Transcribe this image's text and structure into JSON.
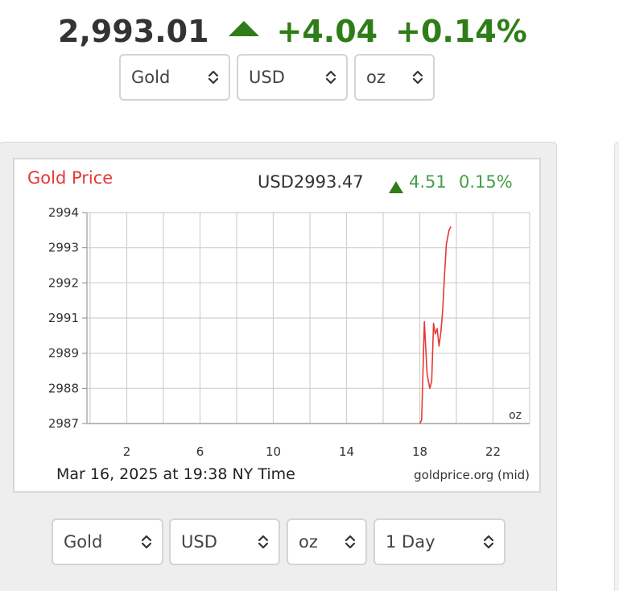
{
  "header": {
    "price": "2,993.01",
    "change": "+4.04",
    "change_pct": "+0.14%",
    "up_color": "#2e7d18"
  },
  "top_selectors": {
    "metal": "Gold",
    "currency": "USD",
    "unit": "oz"
  },
  "chart_header": {
    "title": "Gold Price",
    "price": "USD2993.47",
    "change": "4.51",
    "change_pct": "0.15%"
  },
  "chart_footer": {
    "timestamp": "Mar 16, 2025 at 19:38 NY Time",
    "source": "goldprice.org (mid)"
  },
  "chart_data": {
    "type": "line",
    "unit_label": "oz",
    "yticks": [
      "2994",
      "2993",
      "2992",
      "2991",
      "2989",
      "2988",
      "2987"
    ],
    "xticks": [
      "2",
      "6",
      "10",
      "14",
      "18",
      "22"
    ],
    "ylim": [
      2987,
      2994
    ],
    "xlim": [
      0,
      24
    ],
    "grid": true,
    "line_color": "#e53935",
    "series": [
      {
        "x": [
          18.0,
          18.1,
          18.25,
          18.4,
          18.55,
          18.65,
          18.75,
          18.85,
          18.95,
          19.05,
          19.15,
          19.25,
          19.35,
          19.45,
          19.6,
          19.7
        ],
        "y": [
          2987.0,
          2987.1,
          2990.8,
          2988.4,
          2988.0,
          2988.2,
          2990.7,
          2990.1,
          2990.4,
          2989.4,
          2990.2,
          2991.2,
          2992.2,
          2993.1,
          2993.5,
          2993.6
        ]
      }
    ]
  },
  "bottom_selectors": {
    "metal": "Gold",
    "currency": "USD",
    "unit": "oz",
    "range": "1 Day"
  }
}
